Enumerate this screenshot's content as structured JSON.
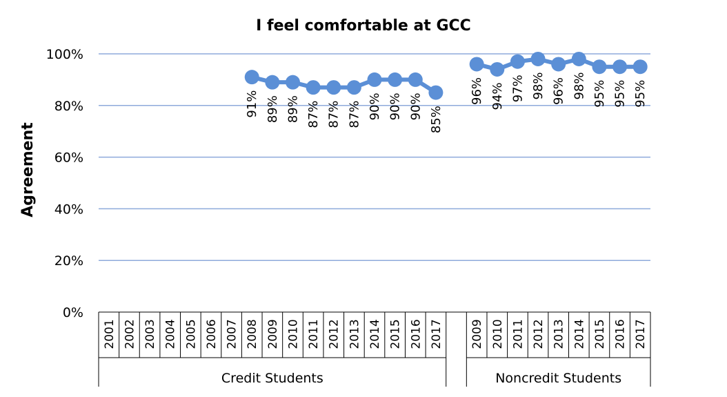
{
  "chart_data": {
    "type": "line",
    "title": "I feel comfortable at GCC",
    "ylabel": "Agreement",
    "xlabel": "",
    "ylim": [
      0,
      100
    ],
    "yticks": [
      "0%",
      "20%",
      "40%",
      "60%",
      "80%",
      "100%"
    ],
    "grid": true,
    "legend": "none",
    "color": "#5b8fd6",
    "groups": [
      {
        "name": "Credit Students",
        "categories": [
          "2001",
          "2002",
          "2003",
          "2004",
          "2005",
          "2006",
          "2007",
          "2008",
          "2009",
          "2010",
          "2011",
          "2012",
          "2013",
          "2014",
          "2015",
          "2016",
          "2017"
        ],
        "values": [
          null,
          null,
          null,
          null,
          null,
          null,
          null,
          91,
          89,
          89,
          87,
          87,
          87,
          90,
          90,
          90,
          85
        ],
        "labels": [
          null,
          null,
          null,
          null,
          null,
          null,
          null,
          "91%",
          "89%",
          "89%",
          "87%",
          "87%",
          "87%",
          "90%",
          "90%",
          "90%",
          "85%"
        ]
      },
      {
        "name": "Noncredit Students",
        "categories": [
          "2009",
          "2010",
          "2011",
          "2012",
          "2013",
          "2014",
          "2015",
          "2016",
          "2017"
        ],
        "values": [
          96,
          94,
          97,
          98,
          96,
          98,
          95,
          95,
          95
        ],
        "labels": [
          "96%",
          "94%",
          "97%",
          "98%",
          "96%",
          "98%",
          "95%",
          "95%",
          "95%"
        ]
      }
    ]
  }
}
